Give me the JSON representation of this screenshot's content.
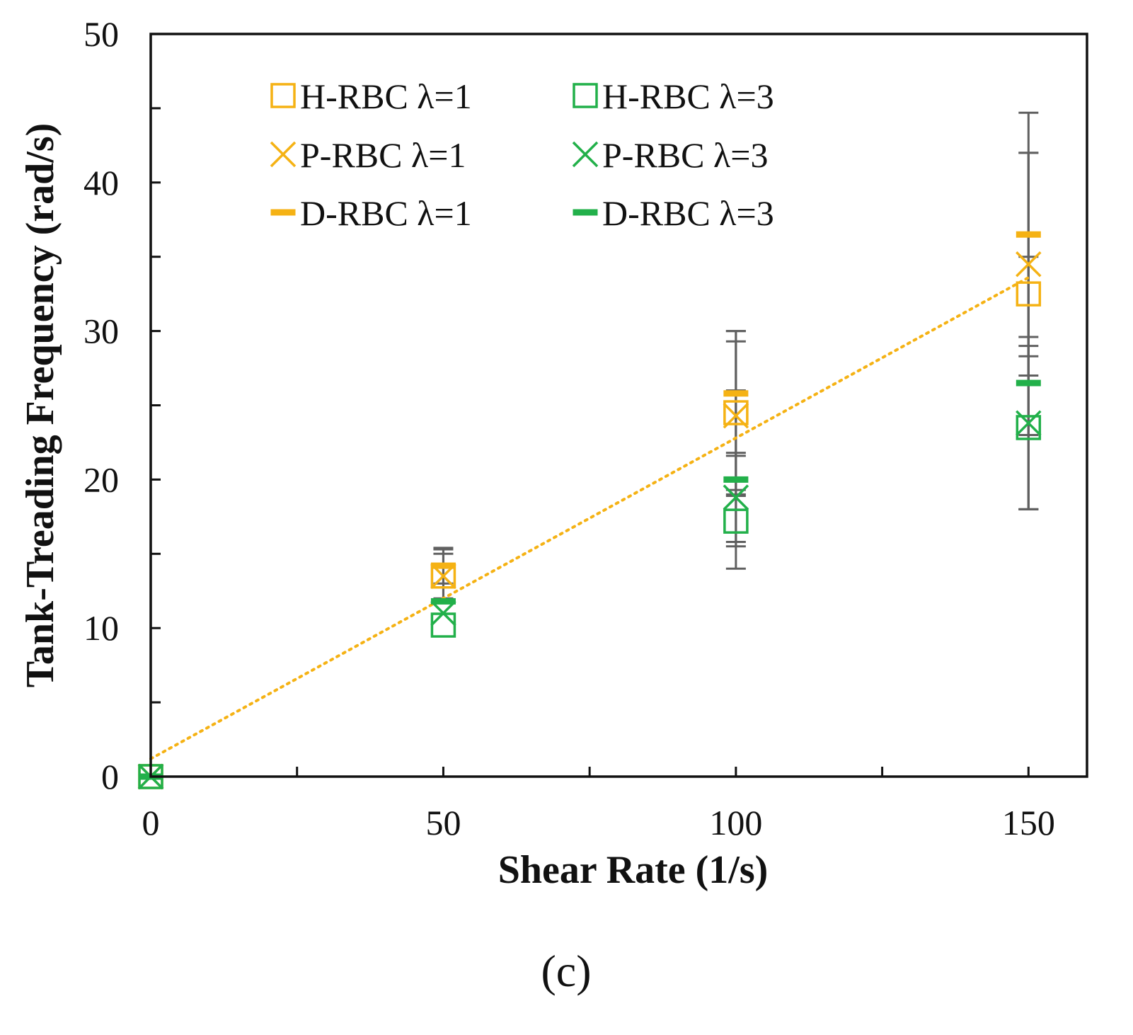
{
  "chart_data": {
    "type": "scatter",
    "xlabel": "Shear Rate (1/s)",
    "ylabel": "Tank-Treading Frequency (rad/s)",
    "xlim": [
      0,
      160
    ],
    "ylim": [
      0,
      50
    ],
    "x_ticks": [
      0,
      50,
      100,
      150
    ],
    "x_minor_ticks": [
      25,
      75,
      125
    ],
    "y_ticks": [
      0,
      10,
      20,
      30,
      40,
      50
    ],
    "y_minor_ticks": [
      5,
      15,
      25,
      35,
      45
    ],
    "grid": false,
    "legend_position": "top-left",
    "caption": "(c)",
    "colors": {
      "lambda1": "#f5b214",
      "lambda3": "#22b04a",
      "error": "#606060",
      "trend": "#f5b214"
    },
    "series": [
      {
        "name": "H-RBC λ=1",
        "marker": "square",
        "color_key": "lambda1",
        "points": [
          {
            "x": 0,
            "y": 0
          },
          {
            "x": 50,
            "y": 13.5
          },
          {
            "x": 100,
            "y": 24.5
          },
          {
            "x": 150,
            "y": 32.5
          }
        ],
        "err": [
          0,
          1.5,
          5.5,
          9.5
        ]
      },
      {
        "name": "P-RBC λ=1",
        "marker": "x",
        "color_key": "lambda1",
        "points": [
          {
            "x": 0,
            "y": 0
          },
          {
            "x": 50,
            "y": 13.5
          },
          {
            "x": 100,
            "y": 24.3
          },
          {
            "x": 150,
            "y": 34.5
          }
        ],
        "err": [
          0,
          1.8,
          5.0,
          7.5
        ]
      },
      {
        "name": "D-RBC λ=1",
        "marker": "dash",
        "color_key": "lambda1",
        "points": [
          {
            "x": 0,
            "y": 0
          },
          {
            "x": 50,
            "y": 14.2
          },
          {
            "x": 100,
            "y": 25.8
          },
          {
            "x": 150,
            "y": 36.5
          }
        ],
        "err": [
          0,
          1.2,
          4.2,
          8.2
        ]
      },
      {
        "name": "H-RBC λ=3",
        "marker": "square",
        "color_key": "lambda3",
        "points": [
          {
            "x": 0,
            "y": 0
          },
          {
            "x": 50,
            "y": 10.2
          },
          {
            "x": 100,
            "y": 17.2
          },
          {
            "x": 150,
            "y": 23.5
          }
        ],
        "err": [
          0,
          0,
          1.7,
          5.5
        ]
      },
      {
        "name": "P-RBC λ=3",
        "marker": "x",
        "color_key": "lambda3",
        "points": [
          {
            "x": 0,
            "y": 0
          },
          {
            "x": 50,
            "y": 11.0
          },
          {
            "x": 100,
            "y": 18.8
          },
          {
            "x": 150,
            "y": 23.8
          }
        ],
        "err": [
          0,
          0,
          3.0,
          5.8
        ]
      },
      {
        "name": "D-RBC λ=3",
        "marker": "dash",
        "color_key": "lambda3",
        "points": [
          {
            "x": 0,
            "y": 0
          },
          {
            "x": 50,
            "y": 11.8
          },
          {
            "x": 100,
            "y": 20.0
          },
          {
            "x": 150,
            "y": 26.5
          }
        ],
        "err": [
          0,
          0,
          6.0,
          8.5
        ]
      }
    ],
    "trendline": {
      "style": "dotted",
      "color_key": "trend",
      "from": {
        "x": 0,
        "y": 1.2
      },
      "to": {
        "x": 150,
        "y": 33.6
      }
    }
  }
}
